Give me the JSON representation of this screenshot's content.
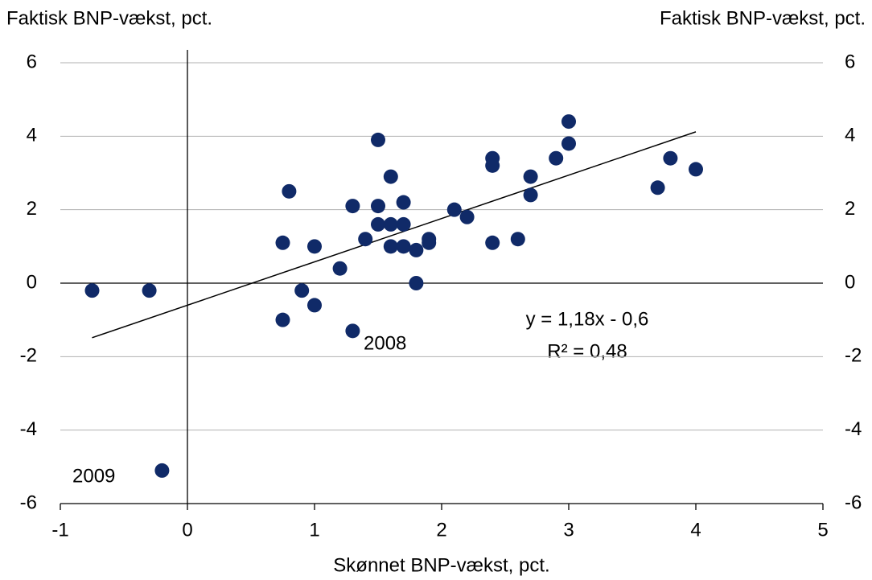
{
  "chart_data": {
    "type": "scatter",
    "y_label": "Faktisk BNP-vækst, pct.",
    "y2_label": "Faktisk BNP-vækst, pct.",
    "x_label": "Skønnet BNP-vækst, pct.",
    "color": "#102a68",
    "x": [
      -0.75,
      -0.3,
      -0.2,
      0.75,
      0.75,
      0.8,
      0.9,
      1.0,
      1.0,
      1.2,
      1.3,
      1.3,
      1.4,
      1.5,
      1.5,
      1.5,
      1.6,
      1.6,
      1.6,
      1.7,
      1.7,
      1.7,
      1.8,
      1.8,
      1.9,
      1.9,
      2.1,
      2.2,
      2.4,
      2.4,
      2.4,
      2.6,
      2.7,
      2.7,
      2.9,
      3.0,
      3.0,
      3.7,
      3.8,
      4.0
    ],
    "values": [
      -0.2,
      -0.2,
      -5.1,
      1.1,
      -1.0,
      2.5,
      -0.2,
      1.0,
      -0.6,
      0.4,
      2.1,
      -1.3,
      1.2,
      3.9,
      2.1,
      1.6,
      2.9,
      1.6,
      1.0,
      2.2,
      1.6,
      1.0,
      0.9,
      0.0,
      1.2,
      1.1,
      2.0,
      1.8,
      3.4,
      3.2,
      1.1,
      1.2,
      2.9,
      2.4,
      3.4,
      4.4,
      3.8,
      2.6,
      3.4,
      3.1
    ],
    "trendline": {
      "slope": 1.18,
      "intercept": -0.6,
      "equation": "y = 1,18x - 0,6",
      "r2": "R² = 0,48"
    },
    "annotations": [
      "2008",
      "2009"
    ],
    "xlim": [
      -1,
      5
    ],
    "xticks": [
      -1,
      0,
      1,
      2,
      3,
      4,
      5
    ],
    "ylim": [
      -6,
      6
    ],
    "yticks": [
      -6,
      -4,
      -2,
      0,
      2,
      4,
      6
    ],
    "y2lim": [
      -6,
      6
    ],
    "y2ticks": [
      -6,
      -4,
      -2,
      0,
      2,
      4,
      6
    ],
    "grid": true
  }
}
